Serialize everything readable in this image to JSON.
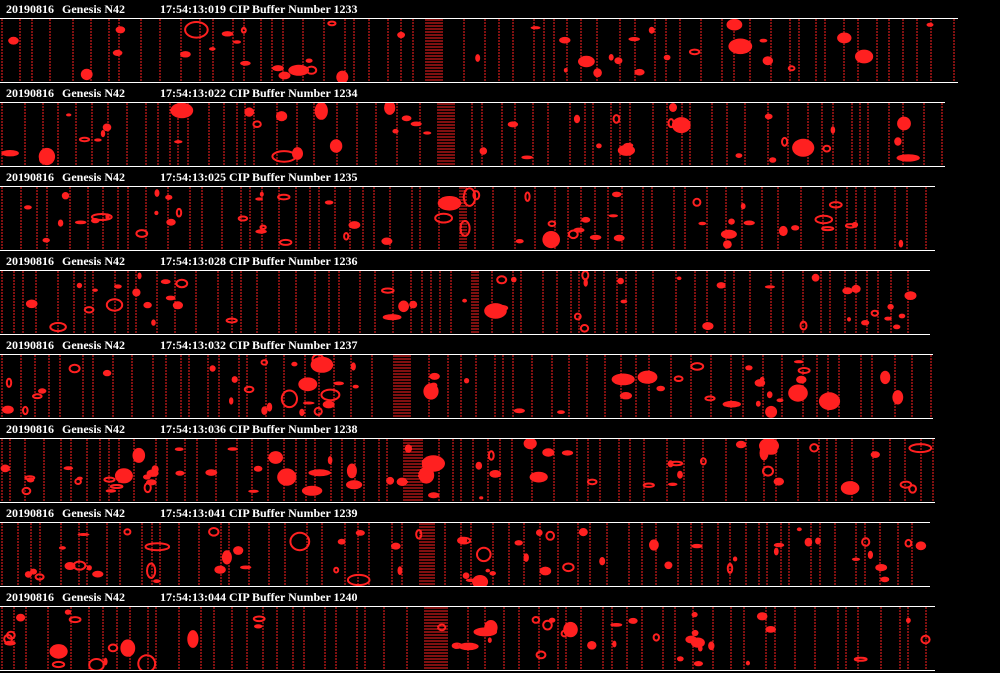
{
  "colors": {
    "background": "#000000",
    "particle": "#ff2020",
    "text": "#ffffff"
  },
  "strips": [
    {
      "date": "20190816",
      "probe": "Genesis N42",
      "time": "17:54:13:019",
      "buffer_label": "CIP Buffer Number 1233"
    },
    {
      "date": "20190816",
      "probe": "Genesis N42",
      "time": "17:54:13:022",
      "buffer_label": "CIP Buffer Number 1234"
    },
    {
      "date": "20190816",
      "probe": "Genesis N42",
      "time": "17:54:13:025",
      "buffer_label": "CIP Buffer Number 1235"
    },
    {
      "date": "20190816",
      "probe": "Genesis N42",
      "time": "17:54:13:028",
      "buffer_label": "CIP Buffer Number 1236"
    },
    {
      "date": "20190816",
      "probe": "Genesis N42",
      "time": "17:54:13:032",
      "buffer_label": "CIP Buffer Number 1237"
    },
    {
      "date": "20190816",
      "probe": "Genesis N42",
      "time": "17:54:13:036",
      "buffer_label": "CIP Buffer Number 1238"
    },
    {
      "date": "20190816",
      "probe": "Genesis N42",
      "time": "17:54:13:041",
      "buffer_label": "CIP Buffer Number 1239"
    },
    {
      "date": "20190816",
      "probe": "Genesis N42",
      "time": "17:54:13:044",
      "buffer_label": "CIP Buffer Number 1240"
    }
  ]
}
